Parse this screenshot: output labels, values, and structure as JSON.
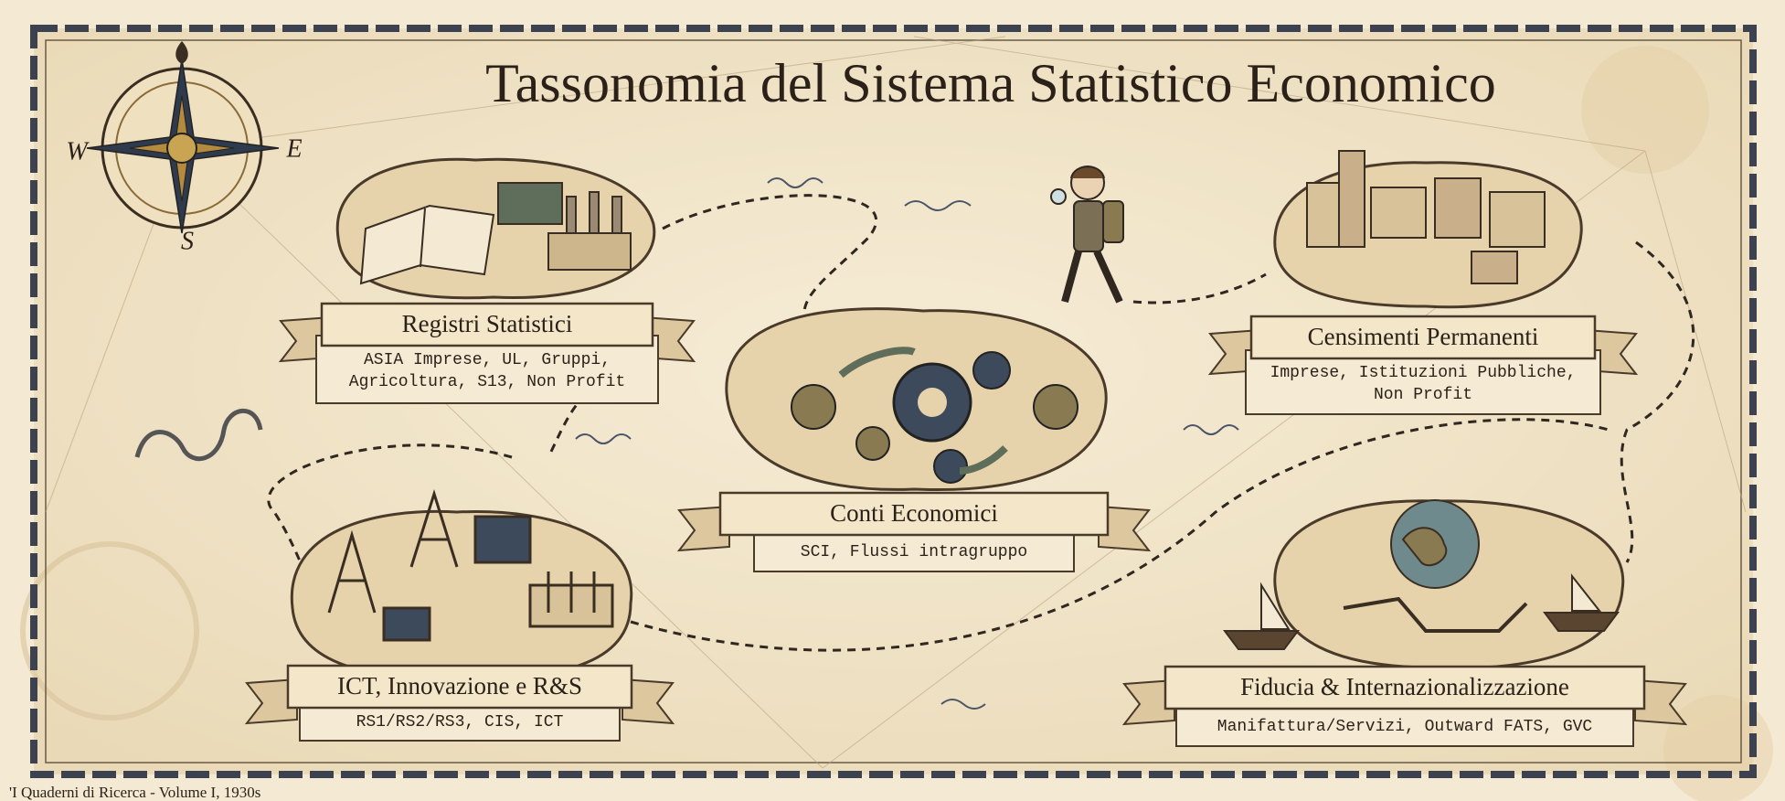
{
  "title": "Tassonomia del Sistema Statistico Economico",
  "compass": {
    "west": "W",
    "east": "E",
    "south": "S"
  },
  "nodes": [
    {
      "label": "Registri Statistici",
      "description": [
        "ASIA Imprese, UL, Gruppi,",
        "Agricoltura, S13, Non Profit"
      ]
    },
    {
      "label": "Conti Economici",
      "description": [
        "SCI, Flussi intragruppo"
      ]
    },
    {
      "label": "Censimenti Permanenti",
      "description": [
        "Imprese, Istituzioni Pubbliche,",
        "Non Profit"
      ]
    },
    {
      "label": "ICT, Innovazione e R&S",
      "description": [
        "RS1/RS2/RS3, CIS, ICT"
      ]
    },
    {
      "label": "Fiducia & Internazionalizzazione",
      "description": [
        "Manifattura/Servizi, Outward FATS, GVC"
      ]
    }
  ],
  "footer": "'I Quaderni di Ricerca - Volume I, 1930s"
}
